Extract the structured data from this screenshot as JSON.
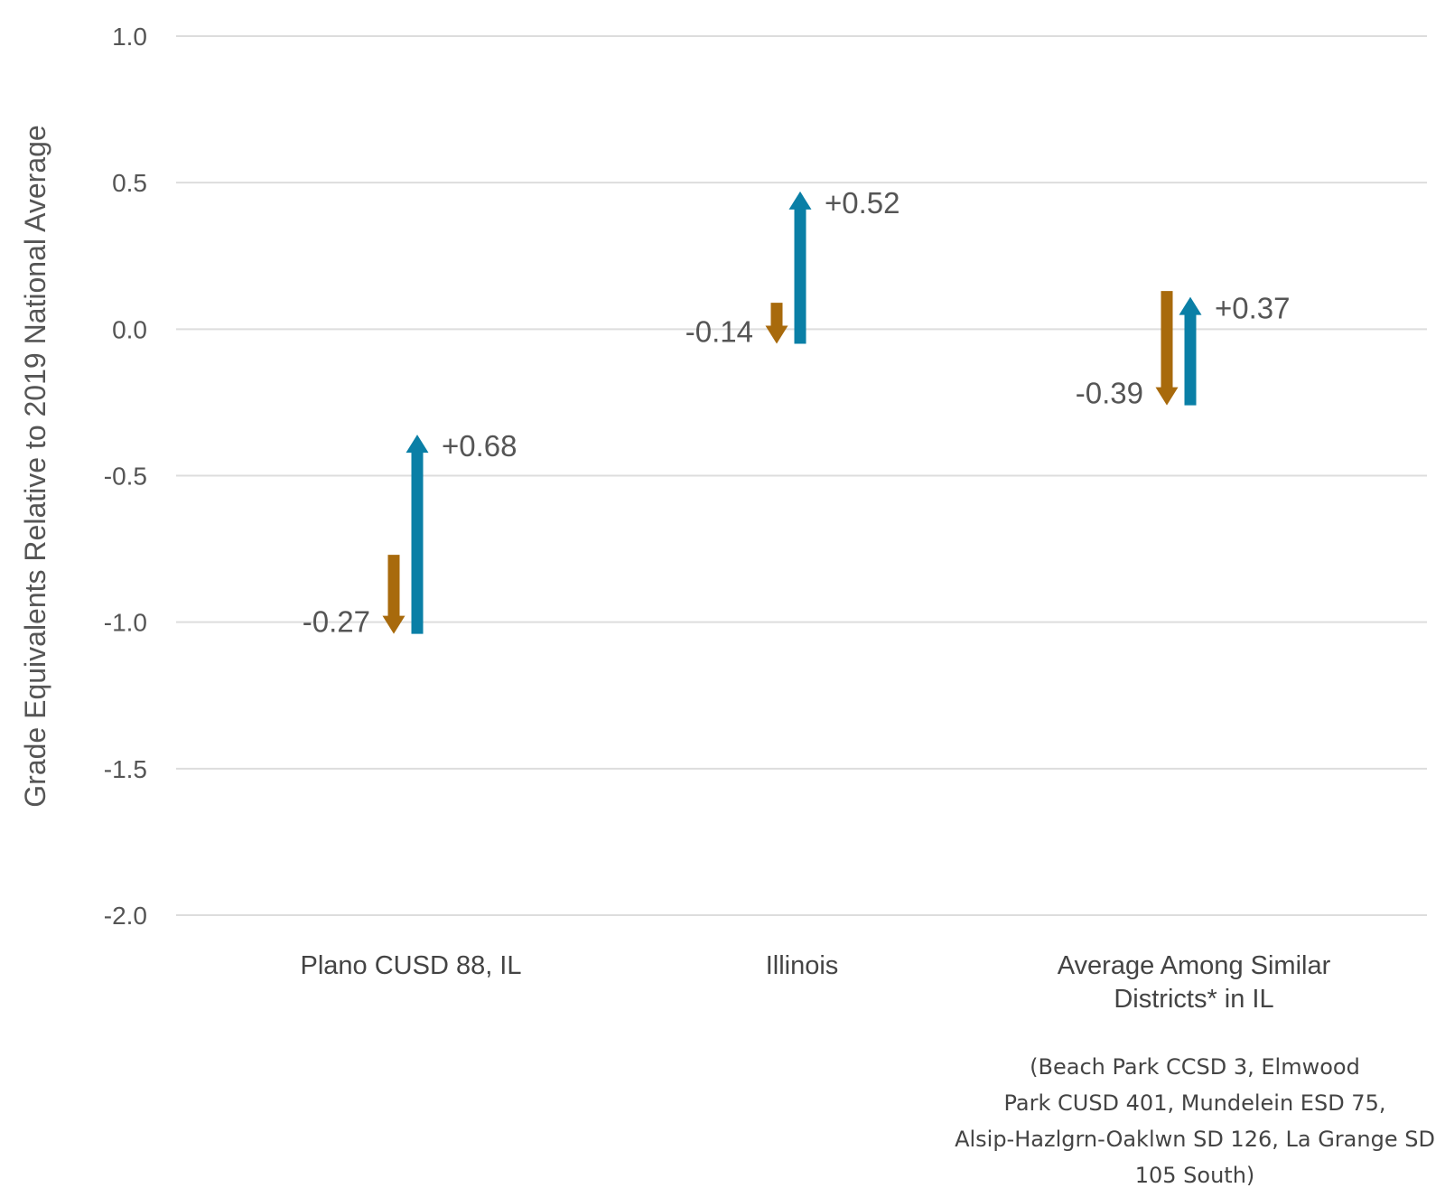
{
  "chart_data": {
    "type": "arrow",
    "ylabel": "Grade Equivalents Relative to 2019 National Average",
    "ylim": [
      -2.0,
      1.0
    ],
    "yticks": [
      1.0,
      0.5,
      0.0,
      -0.5,
      -1.0,
      -1.5,
      -2.0
    ],
    "ytick_labels": [
      "1.0",
      "0.5",
      "0.0",
      "-0.5",
      "-1.0",
      "-1.5",
      "-2.0"
    ],
    "grid": true,
    "categories": [
      {
        "lines": [
          "Plano CUSD 88, IL"
        ],
        "decline": {
          "from": -0.77,
          "to": -1.04,
          "label": "-0.27"
        },
        "recovery": {
          "from": -1.04,
          "to": -0.36,
          "label": "+0.68"
        }
      },
      {
        "lines": [
          "Illinois"
        ],
        "decline": {
          "from": 0.09,
          "to": -0.05,
          "label": "-0.14"
        },
        "recovery": {
          "from": -0.05,
          "to": 0.47,
          "label": "+0.52"
        }
      },
      {
        "lines": [
          "Average Among Similar",
          "Districts* in IL"
        ],
        "decline": {
          "from": 0.13,
          "to": -0.26,
          "label": "-0.39"
        },
        "recovery": {
          "from": -0.26,
          "to": 0.11,
          "label": "+0.37"
        }
      }
    ],
    "footnote_lines": [
      "(Beach Park CCSD 3, Elmwood",
      "Park CUSD 401, Mundelein ESD 75,",
      "Alsip-Hazlgrn-Oaklwn SD 126, La Grange SD",
      "105 South)"
    ],
    "colors": {
      "decline": "#A86A0C",
      "recovery": "#0A7FA6",
      "grid": "#DDDDDD"
    }
  }
}
